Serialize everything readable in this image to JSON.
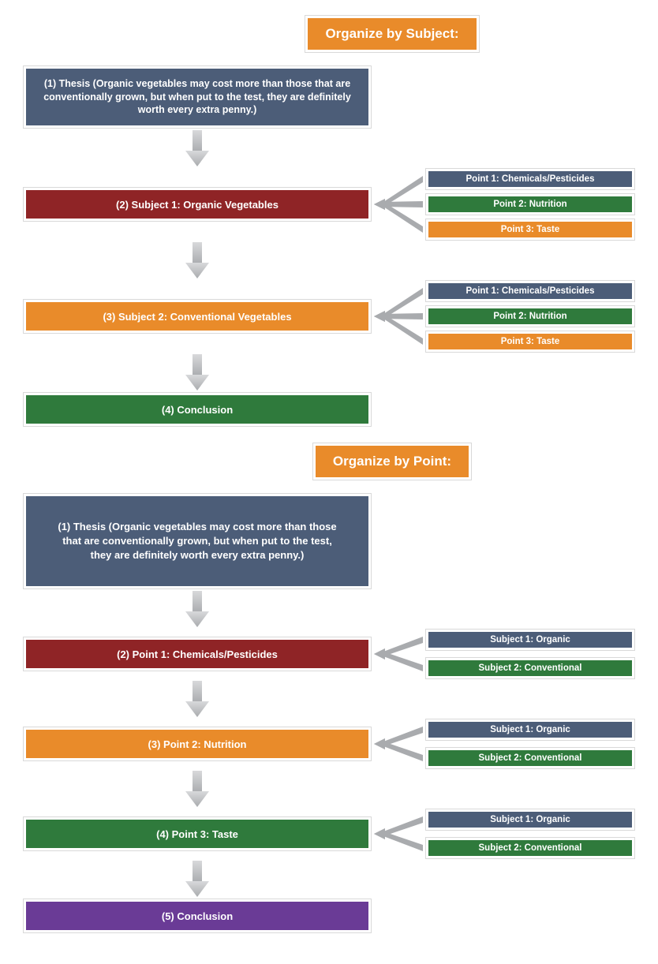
{
  "colors": {
    "orange": "#e98b2a",
    "slate": "#4c5d78",
    "maroon": "#8f2426",
    "green": "#2f7a3c",
    "purple": "#6a3b96",
    "arrow_top": "#d8d9db",
    "arrow_bottom": "#a9abae"
  },
  "section1": {
    "title": "Organize by Subject:",
    "thesis": "(1) Thesis (Organic vegetables may cost more than those that are conventionally grown, but when put to the test, they are definitely worth every extra penny.)",
    "nodes": [
      {
        "label": "(2) Subject 1: Organic Vegetables",
        "color": "maroon",
        "points": [
          {
            "label": "Point 1: Chemicals/Pesticides",
            "color": "slate"
          },
          {
            "label": "Point 2: Nutrition",
            "color": "green"
          },
          {
            "label": "Point 3: Taste",
            "color": "orange"
          }
        ]
      },
      {
        "label": "(3) Subject 2: Conventional Vegetables",
        "color": "orange",
        "points": [
          {
            "label": "Point 1: Chemicals/Pesticides",
            "color": "slate"
          },
          {
            "label": "Point 2: Nutrition",
            "color": "green"
          },
          {
            "label": "Point 3: Taste",
            "color": "orange"
          }
        ]
      },
      {
        "label": "(4) Conclusion",
        "color": "green",
        "points": []
      }
    ]
  },
  "section2": {
    "title": "Organize by Point:",
    "thesis": "(1) Thesis (Organic vegetables may cost more than those that are conventionally grown, but when put to the test, they are definitely worth every extra penny.)",
    "nodes": [
      {
        "label": "(2) Point 1: Chemicals/Pesticides",
        "color": "maroon",
        "subjects": [
          {
            "label": "Subject 1: Organic",
            "color": "slate"
          },
          {
            "label": "Subject 2: Conventional",
            "color": "green"
          }
        ]
      },
      {
        "label": "(3) Point 2: Nutrition",
        "color": "orange",
        "subjects": [
          {
            "label": "Subject 1: Organic",
            "color": "slate"
          },
          {
            "label": "Subject 2: Conventional",
            "color": "green"
          }
        ]
      },
      {
        "label": "(4) Point 3: Taste",
        "color": "green",
        "subjects": [
          {
            "label": "Subject 1: Organic",
            "color": "slate"
          },
          {
            "label": "Subject 2: Conventional",
            "color": "green"
          }
        ]
      },
      {
        "label": "(5) Conclusion",
        "color": "purple",
        "subjects": []
      }
    ]
  }
}
